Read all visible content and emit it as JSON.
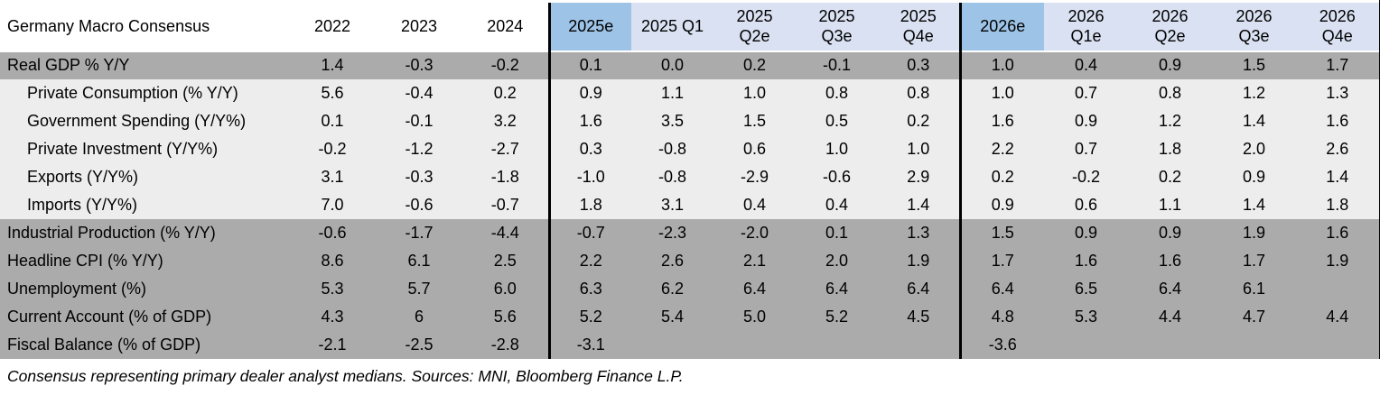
{
  "title": "Germany Macro Consensus",
  "footnote": "Consensus representing primary dealer analyst medians. Sources: MNI, Bloomberg Finance L.P.",
  "colors": {
    "estimate_header_bg": "#9DC3E6",
    "quarter_header_bg": "#D9E1F2",
    "dark_row_bg": "#ABABAB",
    "light_row_bg": "#EDEDED",
    "divider": "#000000",
    "text": "#000000"
  },
  "chart_data": {
    "type": "table",
    "title": "Germany Macro Consensus",
    "footnote": "Consensus representing primary dealer analyst medians. Sources: MNI, Bloomberg Finance L.P.",
    "columns": [
      "2022",
      "2023",
      "2024",
      "2025e",
      "2025 Q1",
      "2025 Q2e",
      "2025 Q3e",
      "2025 Q4e",
      "2026e",
      "2026 Q1e",
      "2026 Q2e",
      "2026 Q3e",
      "2026 Q4e"
    ],
    "column_display": [
      "2022",
      "2023",
      "2024",
      "2025e",
      "2025 Q1",
      "2025\nQ2e",
      "2025\nQ3e",
      "2025\nQ4e",
      "2026e",
      "2026\nQ1e",
      "2026\nQ2e",
      "2026\nQ3e",
      "2026\nQ4e"
    ],
    "column_groups": {
      "history": [
        "2022",
        "2023",
        "2024"
      ],
      "estimate_columns": [
        "2025e",
        "2026e"
      ],
      "quarter_columns_2025": [
        "2025 Q1",
        "2025 Q2e",
        "2025 Q3e",
        "2025 Q4e"
      ],
      "quarter_columns_2026": [
        "2026 Q1e",
        "2026 Q2e",
        "2026 Q3e",
        "2026 Q4e"
      ]
    },
    "rows": [
      {
        "label": "Real GDP % Y/Y",
        "indent": false,
        "shade": "dark",
        "values": [
          "1.4",
          "-0.3",
          "-0.2",
          "0.1",
          "0.0",
          "0.2",
          "-0.1",
          "0.3",
          "1.0",
          "0.4",
          "0.9",
          "1.5",
          "1.7"
        ]
      },
      {
        "label": "Private Consumption (% Y/Y)",
        "indent": true,
        "shade": "light",
        "values": [
          "5.6",
          "-0.4",
          "0.2",
          "0.9",
          "1.1",
          "1.0",
          "0.8",
          "0.8",
          "1.0",
          "0.7",
          "0.8",
          "1.2",
          "1.3"
        ]
      },
      {
        "label": "Government Spending (Y/Y%)",
        "indent": true,
        "shade": "light",
        "values": [
          "0.1",
          "-0.1",
          "3.2",
          "1.6",
          "3.5",
          "1.5",
          "0.5",
          "0.2",
          "1.6",
          "0.9",
          "1.2",
          "1.4",
          "1.6"
        ]
      },
      {
        "label": "Private Investment (Y/Y%)",
        "indent": true,
        "shade": "light",
        "values": [
          "-0.2",
          "-1.2",
          "-2.7",
          "0.3",
          "-0.8",
          "0.6",
          "1.0",
          "1.0",
          "2.2",
          "0.7",
          "1.8",
          "2.0",
          "2.6"
        ]
      },
      {
        "label": "Exports (Y/Y%)",
        "indent": true,
        "shade": "light",
        "values": [
          "3.1",
          "-0.3",
          "-1.8",
          "-1.0",
          "-0.8",
          "-2.9",
          "-0.6",
          "2.9",
          "0.2",
          "-0.2",
          "0.2",
          "0.9",
          "1.4"
        ]
      },
      {
        "label": "Imports (Y/Y%)",
        "indent": true,
        "shade": "light",
        "values": [
          "7.0",
          "-0.6",
          "-0.7",
          "1.8",
          "3.1",
          "0.4",
          "0.4",
          "1.4",
          "0.9",
          "0.6",
          "1.1",
          "1.4",
          "1.8"
        ]
      },
      {
        "label": "Industrial Production (% Y/Y)",
        "indent": false,
        "shade": "dark",
        "values": [
          "-0.6",
          "-1.7",
          "-4.4",
          "-0.7",
          "-2.3",
          "-2.0",
          "0.1",
          "1.3",
          "1.5",
          "0.9",
          "0.9",
          "1.9",
          "1.6"
        ]
      },
      {
        "label": "Headline CPI (% Y/Y)",
        "indent": false,
        "shade": "dark",
        "values": [
          "8.6",
          "6.1",
          "2.5",
          "2.2",
          "2.6",
          "2.1",
          "2.0",
          "1.9",
          "1.7",
          "1.6",
          "1.6",
          "1.7",
          "1.9"
        ]
      },
      {
        "label": "Unemployment (%)",
        "indent": false,
        "shade": "dark",
        "values": [
          "5.3",
          "5.7",
          "6.0",
          "6.3",
          "6.2",
          "6.4",
          "6.4",
          "6.4",
          "6.4",
          "6.5",
          "6.4",
          "6.1",
          ""
        ]
      },
      {
        "label": "Current Account (% of GDP)",
        "indent": false,
        "shade": "dark",
        "values": [
          "4.3",
          "6",
          "5.6",
          "5.2",
          "5.4",
          "5.0",
          "5.2",
          "4.5",
          "4.8",
          "5.3",
          "4.4",
          "4.7",
          "4.4"
        ]
      },
      {
        "label": "Fiscal Balance (% of GDP)",
        "indent": false,
        "shade": "dark",
        "values": [
          "-2.1",
          "-2.5",
          "-2.8",
          "-3.1",
          "",
          "",
          "",
          "",
          "-3.6",
          "",
          "",
          "",
          ""
        ]
      }
    ],
    "layout": {
      "label_col_width": 320,
      "year_col_width": 96,
      "q2025_col_width": 91,
      "q2026_col_width": 93,
      "grid": false,
      "group_dividers": "black vertical lines before 2025e, before 2026e, and at right edge"
    }
  }
}
